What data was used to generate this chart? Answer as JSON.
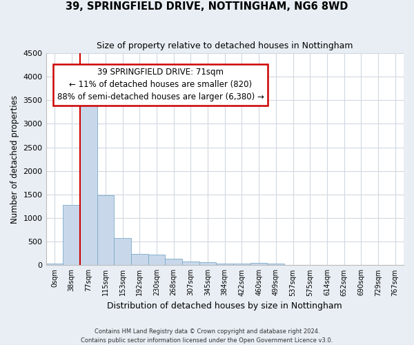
{
  "title": "39, SPRINGFIELD DRIVE, NOTTINGHAM, NG6 8WD",
  "subtitle": "Size of property relative to detached houses in Nottingham",
  "xlabel": "Distribution of detached houses by size in Nottingham",
  "ylabel": "Number of detached properties",
  "bin_labels": [
    "0sqm",
    "38sqm",
    "77sqm",
    "115sqm",
    "153sqm",
    "192sqm",
    "230sqm",
    "268sqm",
    "307sqm",
    "345sqm",
    "384sqm",
    "422sqm",
    "460sqm",
    "499sqm",
    "537sqm",
    "575sqm",
    "614sqm",
    "652sqm",
    "690sqm",
    "729sqm",
    "767sqm"
  ],
  "bar_values": [
    30,
    1280,
    3500,
    1480,
    580,
    240,
    230,
    130,
    75,
    60,
    30,
    30,
    50,
    30,
    0,
    0,
    0,
    0,
    0,
    0,
    0
  ],
  "bar_color": "#c8d8ea",
  "bar_edgecolor": "#7aaac8",
  "annotation_text": "39 SPRINGFIELD DRIVE: 71sqm\n← 11% of detached houses are smaller (820)\n88% of semi-detached houses are larger (6,380) →",
  "annotation_box_color": "#ffffff",
  "annotation_border_color": "#cc0000",
  "property_line_color": "#cc0000",
  "ylim": [
    0,
    4500
  ],
  "yticks": [
    0,
    500,
    1000,
    1500,
    2000,
    2500,
    3000,
    3500,
    4000,
    4500
  ],
  "footer_line1": "Contains HM Land Registry data © Crown copyright and database right 2024.",
  "footer_line2": "Contains public sector information licensed under the Open Government Licence v3.0.",
  "figure_bg_color": "#e8eef4",
  "plot_bg_color": "#ffffff",
  "grid_color": "#d0d8e0"
}
